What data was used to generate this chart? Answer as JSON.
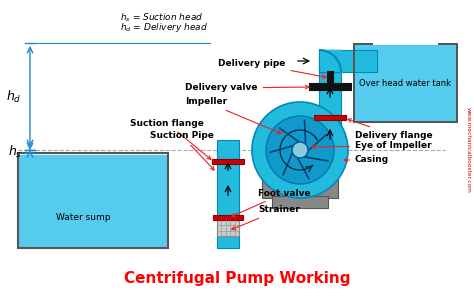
{
  "title": "Centrifugal Pump Working",
  "title_color": "#FF0000",
  "title_fontsize": 11,
  "bg_color": "#FFFFFF",
  "pipe_color": "#22BBDD",
  "pipe_edge_color": "#0088BB",
  "water_color": "#55CCEE",
  "pump_base_color": "#888888",
  "valve_color": "#CC0000",
  "delivery_valve_color": "#111111",
  "dim_arrow_color": "#2288CC",
  "annotation_arrow_color": "#EE2222",
  "watermark_color": "#CC0000",
  "labels": {
    "delivery_pipe": "Delivery pipe",
    "delivery_valve": "Delivery valve",
    "impeller": "Impeller",
    "suction_flange": "Suction flange",
    "delivery_flange": "Delivery flange",
    "eye_of_impeller": "Eye of Impeller",
    "casing": "Casing",
    "suction_pipe": "Suction Pipe",
    "foot_valve": "Foot valve",
    "strainer": "Strainer",
    "water_sump": "Water sump",
    "overhead_tank": "Over head water tank",
    "legend_hs": "h_s = Suction head",
    "legend_hd": "h_d = Delivery head",
    "watermark": "www.mechanicalbooster.com"
  }
}
